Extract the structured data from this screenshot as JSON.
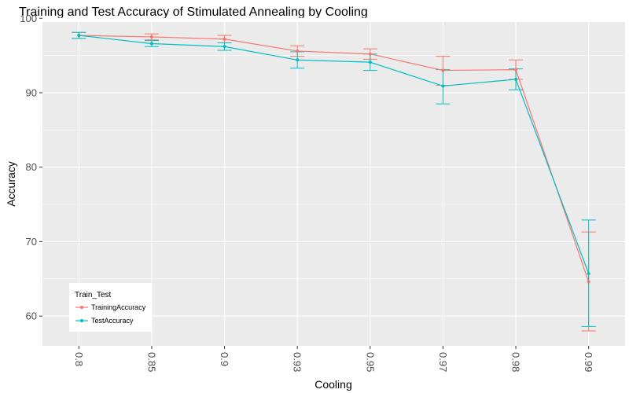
{
  "chart_data": {
    "type": "line",
    "title": "Training and Test Accuracy of Stimulated Annealing by Cooling",
    "xlabel": "Cooling",
    "ylabel": "Accuracy",
    "categories": [
      "0.8",
      "0.85",
      "0.9",
      "0.93",
      "0.95",
      "0.97",
      "0.98",
      "0.99"
    ],
    "y_ticks": [
      "60",
      "70",
      "80",
      "90",
      "100"
    ],
    "ylim": [
      56,
      99.5
    ],
    "grid": true,
    "legend": {
      "title": "Train_Test",
      "placement": "bottom-left"
    },
    "series": [
      {
        "name": "TrainingAccuracy",
        "color": "#F8766D",
        "values": [
          97.7,
          97.5,
          97.2,
          95.6,
          95.2,
          93.0,
          93.1,
          64.6
        ],
        "err_low": [
          97.3,
          97.1,
          96.7,
          94.9,
          94.5,
          91.0,
          91.8,
          58.0
        ],
        "err_high": [
          98.1,
          97.9,
          97.7,
          96.3,
          95.9,
          94.9,
          94.4,
          71.3
        ]
      },
      {
        "name": "TestAccuracy",
        "color": "#00BFC4",
        "values": [
          97.7,
          96.6,
          96.2,
          94.4,
          94.1,
          90.9,
          91.8,
          65.7
        ],
        "err_low": [
          97.3,
          96.2,
          95.7,
          93.3,
          93.0,
          88.5,
          90.4,
          58.6
        ],
        "err_high": [
          98.1,
          97.0,
          96.7,
          95.5,
          95.2,
          93.1,
          93.2,
          72.9
        ]
      }
    ]
  }
}
